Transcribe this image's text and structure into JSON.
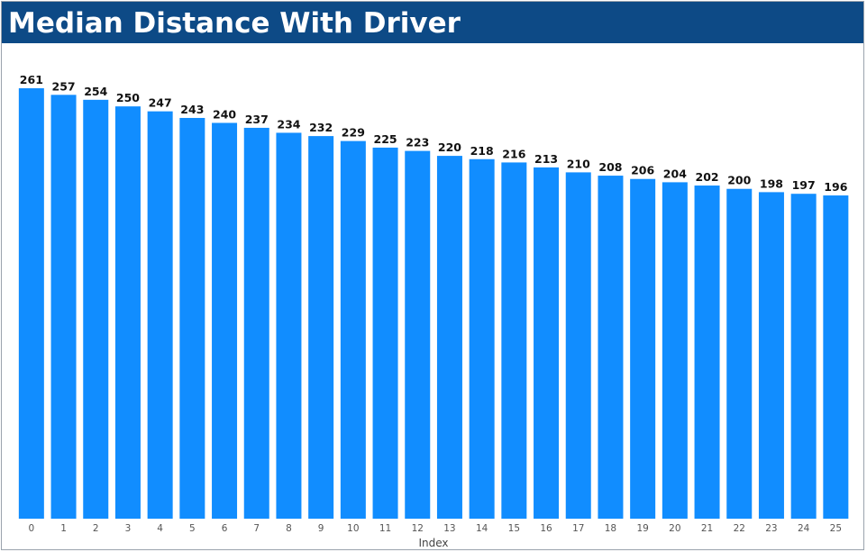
{
  "header": {
    "title": "Median Distance With Driver"
  },
  "colors": {
    "title_background": "#0d4a86",
    "title_text": "#ffffff",
    "bar": "#118dff"
  },
  "chart_data": {
    "type": "bar",
    "title": "Median Distance With Driver",
    "xlabel": "Index",
    "ylabel": "",
    "categories": [
      "0",
      "1",
      "2",
      "3",
      "4",
      "5",
      "6",
      "7",
      "8",
      "9",
      "10",
      "11",
      "12",
      "13",
      "14",
      "15",
      "16",
      "17",
      "18",
      "19",
      "20",
      "21",
      "22",
      "23",
      "24",
      "25"
    ],
    "values": [
      261,
      257,
      254,
      250,
      247,
      243,
      240,
      237,
      234,
      232,
      229,
      225,
      223,
      220,
      218,
      216,
      213,
      210,
      208,
      206,
      204,
      202,
      200,
      198,
      197,
      196
    ],
    "data_labels": true,
    "grid": false,
    "y_axis_visible": false,
    "ylim": [
      0,
      261
    ]
  }
}
